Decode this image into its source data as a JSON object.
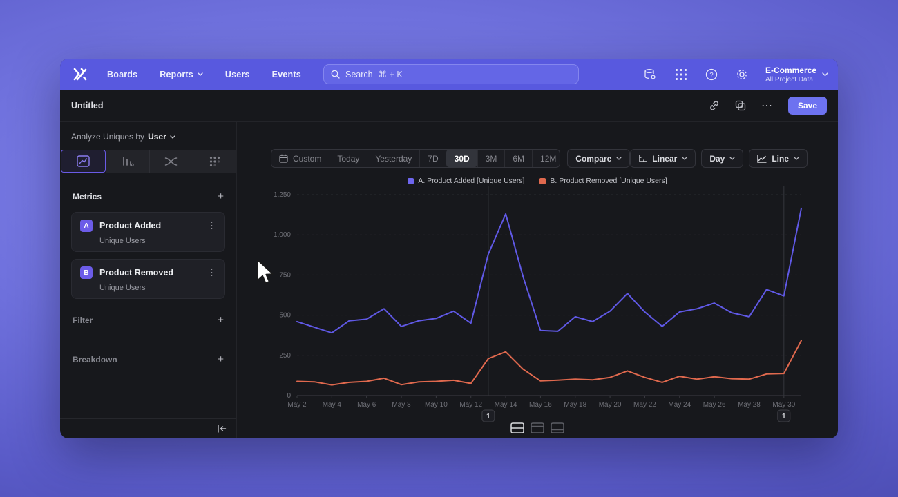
{
  "icons": {
    "plus": "+",
    "kebab": "⋮",
    "more": "⋯",
    "help": "?"
  },
  "navbar": {
    "logo_icon": "x-logo-icon",
    "items": [
      {
        "label": "Boards",
        "chevron": false
      },
      {
        "label": "Reports",
        "chevron": true
      },
      {
        "label": "Users",
        "chevron": false
      },
      {
        "label": "Events",
        "chevron": false
      }
    ],
    "search": {
      "text": "Search",
      "shortcut": "⌘ + K"
    },
    "action_icons": [
      "data-settings-icon",
      "apps-grid-icon",
      "help-icon",
      "settings-gear-icon"
    ],
    "project": {
      "name": "E-Commerce",
      "subtitle": "All Project Data"
    }
  },
  "titlebar": {
    "title": "Untitled",
    "save_label": "Save"
  },
  "sidebar": {
    "analyze_prefix": "Analyze Uniques by",
    "analyze_value": "User",
    "tabs": [
      "insights-chart-icon",
      "bar-chart-icon",
      "flows-icon",
      "retention-grid-icon"
    ],
    "selected_tab_index": 0,
    "metrics_title": "Metrics",
    "metrics": [
      {
        "badge": "A",
        "name": "Product Added",
        "subtitle": "Unique Users"
      },
      {
        "badge": "B",
        "name": "Product Removed",
        "subtitle": "Unique Users"
      }
    ],
    "filter_label": "Filter",
    "breakdown_label": "Breakdown"
  },
  "toolbar": {
    "ranges": [
      "Custom",
      "Today",
      "Yesterday",
      "7D",
      "30D",
      "3M",
      "6M",
      "12M"
    ],
    "selected_range": "30D",
    "compare_label": "Compare",
    "scale_label": "Linear",
    "interval_label": "Day",
    "chart_type_label": "Line"
  },
  "chart_data": {
    "type": "line",
    "x": [
      "May 2",
      "May 3",
      "May 4",
      "May 5",
      "May 6",
      "May 7",
      "May 8",
      "May 9",
      "May 10",
      "May 11",
      "May 12",
      "May 13",
      "May 14",
      "May 15",
      "May 16",
      "May 17",
      "May 18",
      "May 19",
      "May 20",
      "May 21",
      "May 22",
      "May 23",
      "May 24",
      "May 25",
      "May 26",
      "May 27",
      "May 28",
      "May 29",
      "May 30",
      "May 31"
    ],
    "x_tick_every": 2,
    "series": [
      {
        "name": "A. Product Added [Unique Users]",
        "color": "#6059e6",
        "values": [
          460,
          425,
          390,
          465,
          475,
          540,
          430,
          465,
          480,
          525,
          450,
          880,
          1130,
          740,
          405,
          400,
          490,
          460,
          525,
          635,
          520,
          430,
          520,
          540,
          575,
          515,
          490,
          660,
          620,
          1165
        ]
      },
      {
        "name": "B. Product Removed [Unique Users]",
        "color": "#e0694e",
        "values": [
          88,
          85,
          66,
          82,
          88,
          108,
          68,
          85,
          88,
          95,
          75,
          230,
          272,
          164,
          91,
          96,
          102,
          98,
          113,
          153,
          113,
          82,
          120,
          102,
          117,
          105,
          102,
          134,
          137,
          342
        ]
      }
    ],
    "ylim": [
      0,
      1250
    ],
    "y_ticks": [
      0,
      250,
      500,
      750,
      1000,
      1250
    ],
    "y_tick_labels": [
      "0",
      "250",
      "500",
      "750",
      "1,000",
      "1,250"
    ],
    "annotations": [
      {
        "x_index": 11,
        "label": "1"
      },
      {
        "x_index": 28,
        "label": "1"
      }
    ],
    "grid": "horizontal-dashed",
    "legend_position": "top-center"
  },
  "view_toggles": [
    "split-view-icon",
    "top-panel-view-icon",
    "bottom-panel-view-icon"
  ],
  "selected_view_toggle": 0
}
